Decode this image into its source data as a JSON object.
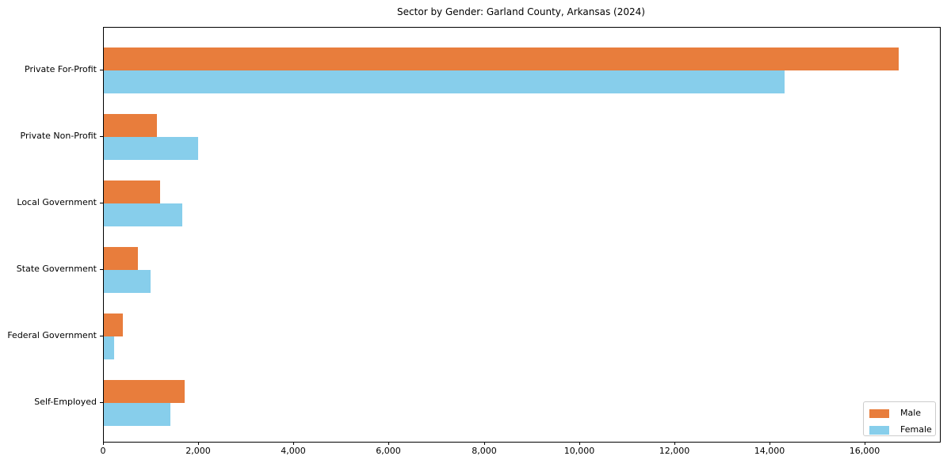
{
  "chart_data": {
    "type": "bar",
    "orientation": "horizontal",
    "title": "Sector by Gender: Garland County, Arkansas (2024)",
    "categories": [
      "Private For-Profit",
      "Private Non-Profit",
      "Local Government",
      "State Government",
      "Federal Government",
      "Self-Employed"
    ],
    "series": [
      {
        "name": "Male",
        "color": "#e87d3c",
        "values": [
          16700,
          1110,
          1190,
          720,
          400,
          1690
        ]
      },
      {
        "name": "Female",
        "color": "#87ceeb",
        "values": [
          14300,
          1980,
          1640,
          990,
          210,
          1400
        ]
      }
    ],
    "xlim": [
      0,
      17560
    ],
    "xticks": [
      0,
      2000,
      4000,
      6000,
      8000,
      10000,
      12000,
      14000,
      16000
    ],
    "xtick_labels": [
      "0",
      "2,000",
      "4,000",
      "6,000",
      "8,000",
      "10,000",
      "12,000",
      "14,000",
      "16,000"
    ],
    "legend": {
      "position": "lower right",
      "entries": [
        "Male",
        "Female"
      ]
    },
    "grid": false,
    "frame_color": "#000000",
    "text_color": "#000000"
  }
}
